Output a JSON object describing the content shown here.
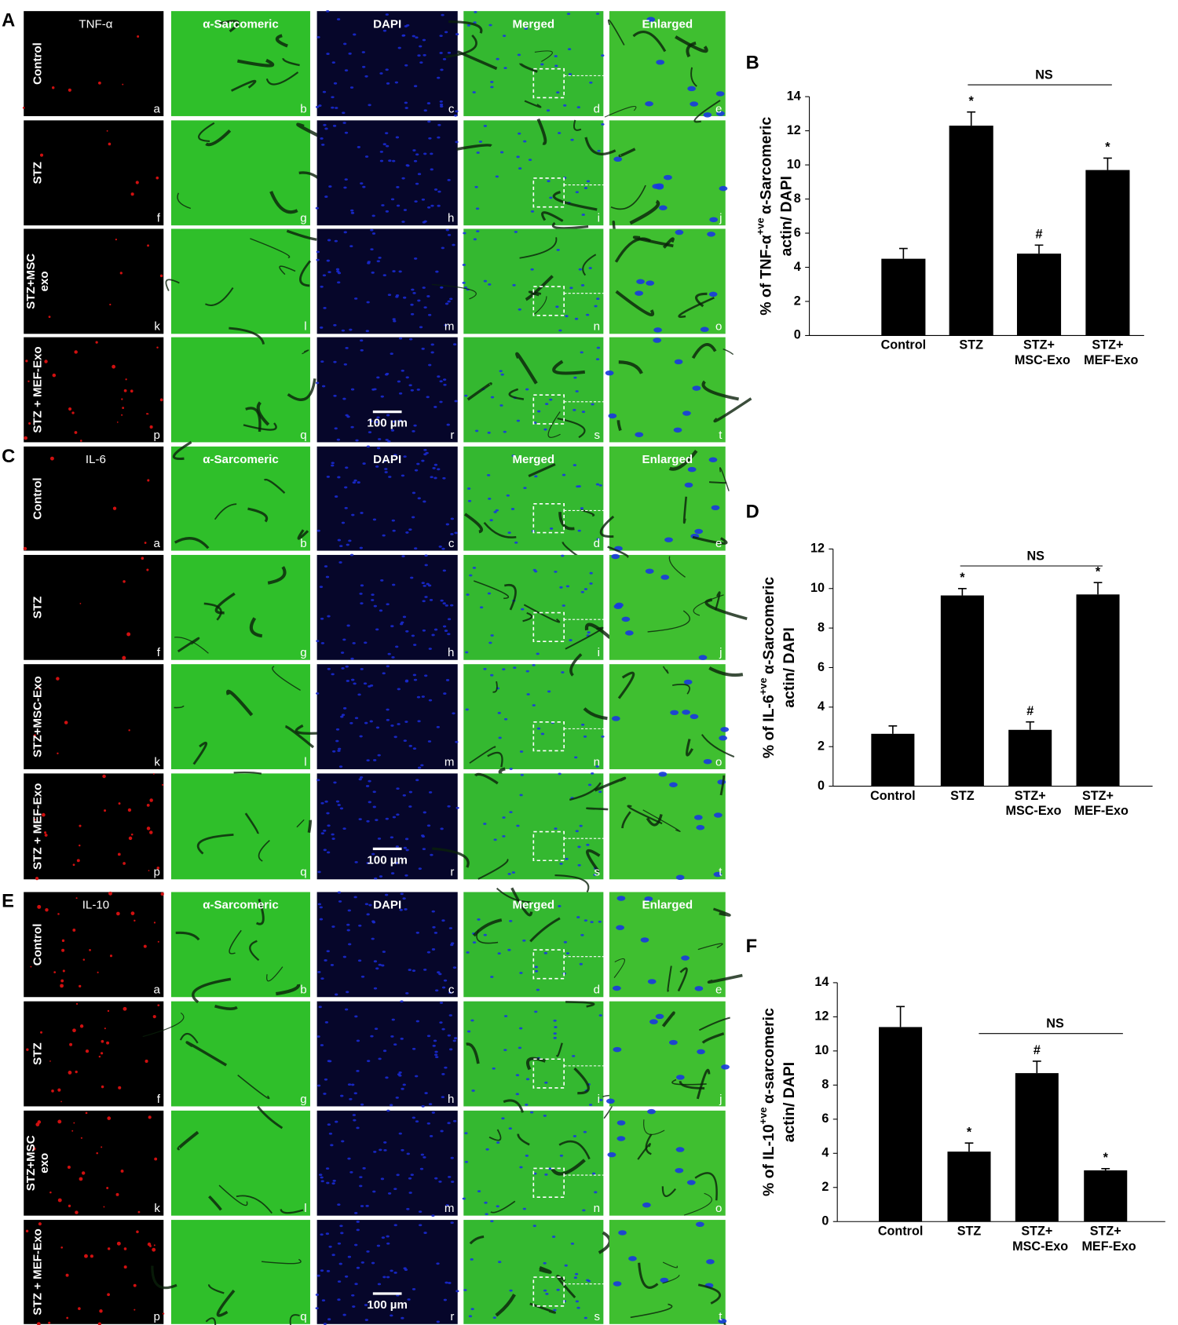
{
  "micro": {
    "blocks": [
      {
        "label": "A",
        "columns": [
          "TNF-α",
          "α-Sarcomeric",
          "DAPI",
          "Merged",
          "Enlarged"
        ],
        "rows": [
          [
            "Control"
          ],
          [
            "STZ"
          ],
          [
            "STZ+MSC",
            "exo"
          ],
          [
            "STZ + MEF-Exo"
          ]
        ]
      },
      {
        "label": "C",
        "columns": [
          "IL-6",
          "α-Sarcomeric",
          "DAPI",
          "Merged",
          "Enlarged"
        ],
        "rows": [
          [
            "Control"
          ],
          [
            "STZ"
          ],
          [
            "STZ+MSC-Exo"
          ],
          [
            "STZ + MEF-Exo"
          ]
        ]
      },
      {
        "label": "E",
        "columns": [
          "IL-10",
          "α-Sarcomeric",
          "DAPI",
          "Merged",
          "Enlarged"
        ],
        "rows": [
          [
            "Control"
          ],
          [
            "STZ"
          ],
          [
            "STZ+MSC",
            "exo"
          ],
          [
            "STZ + MEF-Exo"
          ]
        ]
      }
    ],
    "panel_letters": [
      "a",
      "b",
      "c",
      "d",
      "e",
      "f",
      "g",
      "h",
      "i",
      "j",
      "k",
      "l",
      "m",
      "n",
      "o",
      "p",
      "q",
      "r",
      "s",
      "t"
    ],
    "scale_bar": "100 µm"
  },
  "chart_data": [
    {
      "type": "bar",
      "panel_label": "B",
      "ylabel": [
        "% of TNF-α",
        "+ve",
        "α-Sarcomeric",
        "actin/ DAPI"
      ],
      "categories": [
        [
          "Control"
        ],
        [
          "STZ"
        ],
        [
          "STZ+",
          "MSC-Exo"
        ],
        [
          "STZ+",
          "MEF-Exo"
        ]
      ],
      "values": [
        4.5,
        12.3,
        4.8,
        9.7
      ],
      "errors": [
        0.6,
        0.8,
        0.5,
        0.7
      ],
      "annotations": [
        null,
        "*",
        "#",
        "*"
      ],
      "ns_label": "NS",
      "color": "#000000",
      "ylim": [
        0,
        14
      ],
      "yticks": [
        0,
        2,
        4,
        6,
        8,
        10,
        12,
        14
      ]
    },
    {
      "type": "bar",
      "panel_label": "D",
      "ylabel": [
        "% of IL-6",
        "+ve",
        "α-Sarcomeric",
        "actin/ DAPI"
      ],
      "categories": [
        [
          "Control"
        ],
        [
          "STZ"
        ],
        [
          "STZ+",
          "MSC-Exo"
        ],
        [
          "STZ+",
          "MEF-Exo"
        ]
      ],
      "values": [
        2.65,
        9.65,
        2.85,
        9.7
      ],
      "errors": [
        0.4,
        0.35,
        0.4,
        0.6
      ],
      "annotations": [
        null,
        "*",
        "#",
        "*"
      ],
      "ns_label": "NS",
      "color": "#000000",
      "ylim": [
        0,
        12
      ],
      "yticks": [
        0,
        2,
        4,
        6,
        8,
        10,
        12
      ]
    },
    {
      "type": "bar",
      "panel_label": "F",
      "ylabel": [
        "% of IL-10",
        "+ve",
        "α-sarcomeric",
        "actin/ DAPI"
      ],
      "categories": [
        [
          "Control"
        ],
        [
          "STZ"
        ],
        [
          "STZ+",
          "MSC-Exo"
        ],
        [
          "STZ+",
          "MEF-Exo"
        ]
      ],
      "values": [
        11.4,
        4.1,
        8.7,
        3.0
      ],
      "errors": [
        1.2,
        0.5,
        0.7,
        0.1
      ],
      "annotations": [
        null,
        "*",
        "#",
        "*"
      ],
      "ns_label": "NS",
      "color": "#000000",
      "ylim": [
        0,
        14
      ],
      "yticks": [
        0,
        2,
        4,
        6,
        8,
        10,
        12,
        14
      ]
    }
  ]
}
